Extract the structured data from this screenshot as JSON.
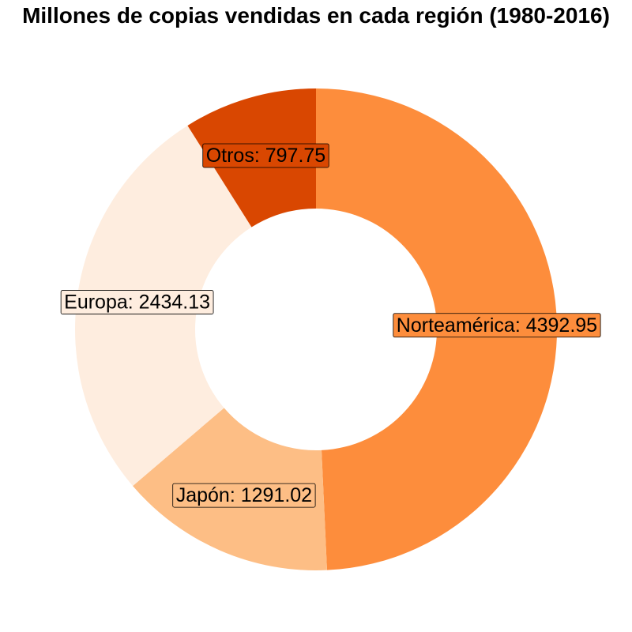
{
  "chart_data": {
    "type": "pie",
    "variant": "donut",
    "title": "Millones de copias vendidas en cada región (1980-2016)",
    "start": "top",
    "direction": "clockwise",
    "slices": [
      {
        "name": "Norteamérica",
        "value": 4392.95,
        "label": "Norteamérica: 4392.95",
        "color": "#fd8d3c"
      },
      {
        "name": "Japón",
        "value": 1291.02,
        "label": "Japón: 1291.02",
        "color": "#fdbe85"
      },
      {
        "name": "Europa",
        "value": 2434.13,
        "label": "Europa: 2434.13",
        "color": "#feeddf"
      },
      {
        "name": "Otros",
        "value": 797.75,
        "label": "Otros: 797.75",
        "color": "#d94701"
      }
    ]
  }
}
